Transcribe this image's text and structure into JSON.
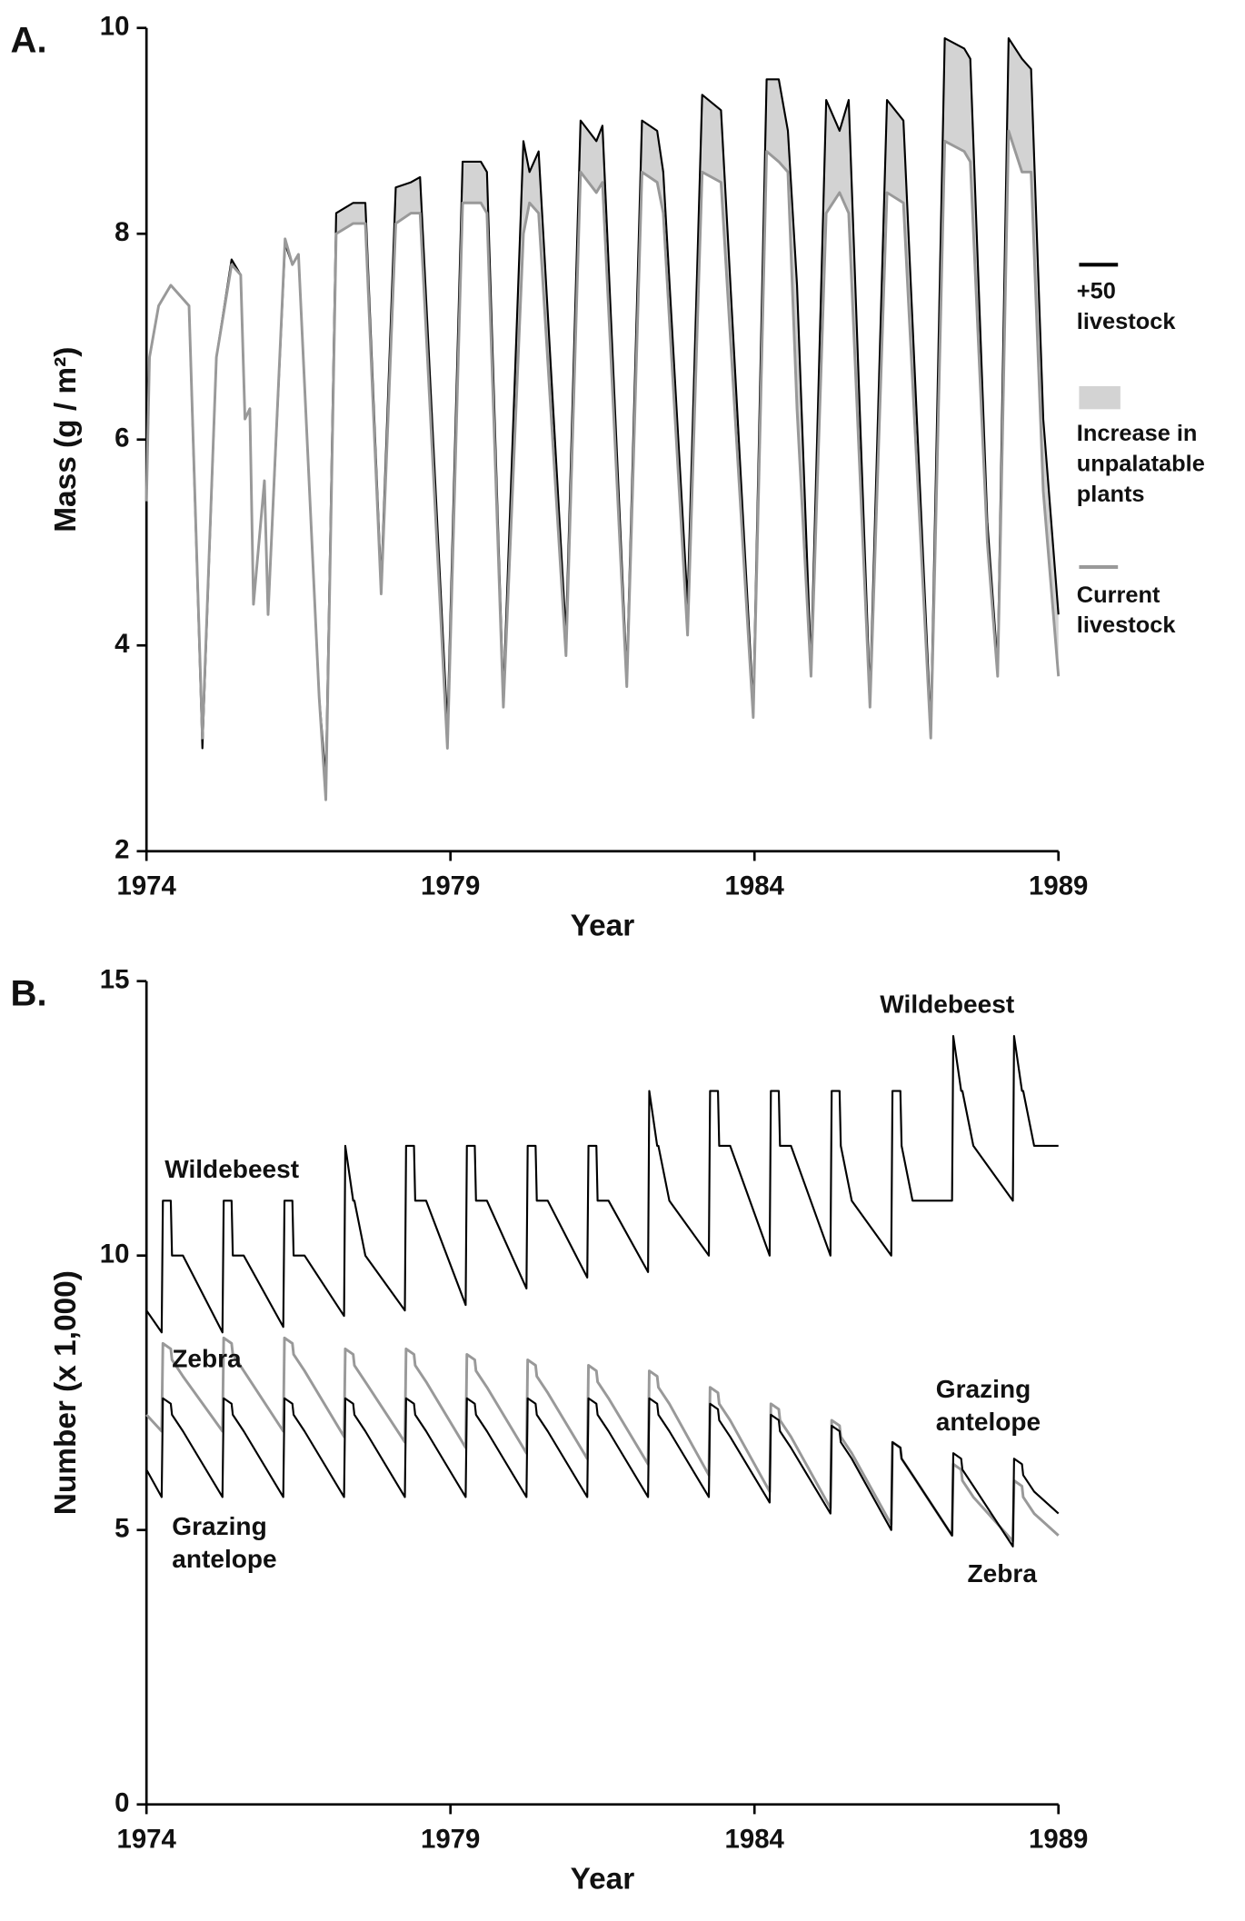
{
  "chart_data": [
    {
      "type": "line",
      "panel_label": "A.",
      "x_label": "Year",
      "y_label": "Mass  (g / m²)",
      "xlim": [
        1974,
        1989
      ],
      "xticks": [
        1974,
        1979,
        1984,
        1989
      ],
      "ylim": [
        2,
        10
      ],
      "yticks": [
        2,
        4,
        6,
        8,
        10
      ],
      "fill_between": true,
      "fill_label": "Increase in unpalatable plants",
      "fill_color": "#d3d3d3",
      "x": [
        1974,
        1974.05,
        1974.2,
        1974.4,
        1974.7,
        1974.92,
        1975.15,
        1975.4,
        1975.55,
        1975.62,
        1975.7,
        1975.76,
        1975.94,
        1976,
        1976.28,
        1976.4,
        1976.5,
        1976.84,
        1976.95,
        1977.12,
        1977.4,
        1977.6,
        1977.86,
        1978.1,
        1978.35,
        1978.5,
        1978.95,
        1979.2,
        1979.5,
        1979.6,
        1979.87,
        1980.2,
        1980.3,
        1980.45,
        1980.9,
        1981.14,
        1981.4,
        1981.5,
        1981.9,
        1982.15,
        1982.4,
        1982.5,
        1982.9,
        1983.14,
        1983.45,
        1983.98,
        1984.2,
        1984.4,
        1984.55,
        1984.7,
        1984.93,
        1985.18,
        1985.4,
        1985.55,
        1985.9,
        1986.18,
        1986.45,
        1986.9,
        1987.13,
        1987.45,
        1987.55,
        1987.83,
        1988,
        1988.18,
        1988.4,
        1988.55,
        1988.75,
        1989
      ],
      "series": [
        {
          "name": "+50 livestock",
          "color": "#000000",
          "values": [
            5.4,
            6.8,
            7.3,
            7.5,
            7.3,
            3.0,
            6.8,
            7.75,
            7.6,
            6.2,
            6.3,
            4.4,
            5.6,
            4.3,
            7.9,
            7.7,
            7.8,
            3.5,
            2.7,
            8.2,
            8.3,
            8.3,
            4.6,
            8.45,
            8.5,
            8.55,
            3.2,
            8.7,
            8.7,
            8.6,
            3.5,
            8.9,
            8.6,
            8.8,
            4.1,
            9.1,
            8.9,
            9.05,
            3.7,
            9.1,
            9.0,
            8.6,
            4.4,
            9.35,
            9.2,
            3.4,
            9.5,
            9.5,
            9.0,
            7.5,
            3.8,
            9.3,
            9.0,
            9.3,
            3.5,
            9.3,
            9.1,
            3.2,
            9.9,
            9.8,
            9.7,
            5.2,
            3.8,
            9.9,
            9.7,
            9.6,
            6.2,
            4.3
          ]
        },
        {
          "name": "Current livestock",
          "color": "#999999",
          "values": [
            5.4,
            6.8,
            7.3,
            7.5,
            7.3,
            3.1,
            6.8,
            7.7,
            7.6,
            6.2,
            6.3,
            4.4,
            5.6,
            4.3,
            7.95,
            7.7,
            7.8,
            3.5,
            2.5,
            8.0,
            8.1,
            8.1,
            4.5,
            8.1,
            8.2,
            8.2,
            3.0,
            8.3,
            8.3,
            8.2,
            3.4,
            8.0,
            8.3,
            8.2,
            3.9,
            8.6,
            8.4,
            8.5,
            3.6,
            8.6,
            8.5,
            8.2,
            4.1,
            8.6,
            8.5,
            3.3,
            8.8,
            8.7,
            8.6,
            6.3,
            3.7,
            8.2,
            8.4,
            8.2,
            3.4,
            8.4,
            8.3,
            3.1,
            8.9,
            8.8,
            8.7,
            5.0,
            3.7,
            9.0,
            8.6,
            8.6,
            5.5,
            3.7
          ]
        }
      ]
    },
    {
      "type": "line",
      "panel_label": "B.",
      "x_label": "Year",
      "y_label": "Number  (x 1,000)",
      "xlim": [
        1974,
        1989
      ],
      "xticks": [
        1974,
        1979,
        1984,
        1989
      ],
      "ylim": [
        0,
        15
      ],
      "yticks": [
        0,
        5,
        10,
        15
      ],
      "annotations": [
        "Wildebeest",
        "Wildebeest",
        "Zebra",
        "Grazing antelope",
        "Grazing antelope",
        "Zebra"
      ],
      "x": [
        1974,
        1974.25,
        1974.27,
        1974.4,
        1974.42,
        1974.6,
        1975.25,
        1975.27,
        1975.4,
        1975.42,
        1975.6,
        1976.25,
        1976.27,
        1976.4,
        1976.42,
        1976.6,
        1977.25,
        1977.27,
        1977.4,
        1977.42,
        1977.6,
        1978.25,
        1978.27,
        1978.4,
        1978.42,
        1978.6,
        1979.25,
        1979.27,
        1979.4,
        1979.42,
        1979.6,
        1980.25,
        1980.27,
        1980.4,
        1980.42,
        1980.6,
        1981.25,
        1981.27,
        1981.4,
        1981.42,
        1981.6,
        1982.25,
        1982.27,
        1982.4,
        1982.42,
        1982.6,
        1983.25,
        1983.27,
        1983.4,
        1983.42,
        1983.6,
        1984.25,
        1984.27,
        1984.4,
        1984.42,
        1984.6,
        1985.25,
        1985.27,
        1985.4,
        1985.42,
        1985.6,
        1986.25,
        1986.27,
        1986.4,
        1986.42,
        1986.6,
        1987.25,
        1987.27,
        1987.4,
        1987.42,
        1987.6,
        1988.25,
        1988.27,
        1988.4,
        1988.42,
        1988.6,
        1989
      ],
      "series": [
        {
          "name": "Wildebeest",
          "color": "#000000",
          "values": [
            9.0,
            8.6,
            11,
            11,
            10,
            10,
            8.6,
            11,
            11,
            10,
            10,
            8.7,
            11,
            11,
            10,
            10,
            8.9,
            12,
            11,
            11,
            10,
            9.0,
            12,
            12,
            11,
            11,
            9.1,
            12,
            12,
            11,
            11,
            9.4,
            12,
            12,
            11,
            11,
            9.6,
            12,
            12,
            11,
            11,
            9.7,
            13,
            12,
            12,
            11,
            10,
            13,
            13,
            12,
            12,
            10,
            13,
            13,
            12,
            12,
            10,
            13,
            13,
            12,
            11,
            10,
            13,
            13,
            12,
            11,
            11,
            14,
            13,
            13,
            12,
            11,
            14,
            13,
            13,
            12,
            12
          ]
        },
        {
          "name": "Zebra",
          "color": "#999999",
          "values": [
            7.1,
            6.8,
            8.4,
            8.3,
            8.1,
            7.8,
            6.8,
            8.5,
            8.4,
            8.2,
            7.9,
            6.8,
            8.5,
            8.4,
            8.2,
            7.9,
            6.7,
            8.3,
            8.2,
            8.0,
            7.7,
            6.6,
            8.3,
            8.2,
            8.0,
            7.7,
            6.5,
            8.2,
            8.1,
            7.9,
            7.6,
            6.4,
            8.1,
            8.0,
            7.8,
            7.5,
            6.3,
            8.0,
            7.9,
            7.7,
            7.4,
            6.2,
            7.9,
            7.8,
            7.6,
            7.3,
            6.0,
            7.6,
            7.5,
            7.3,
            7.0,
            5.7,
            7.3,
            7.2,
            7.0,
            6.7,
            5.4,
            7.0,
            6.9,
            6.7,
            6.4,
            5.1,
            6.6,
            6.5,
            6.3,
            6.0,
            4.9,
            6.2,
            6.1,
            5.9,
            5.6,
            4.8,
            5.9,
            5.8,
            5.6,
            5.3,
            4.9
          ]
        },
        {
          "name": "Grazing antelope",
          "color": "#000000",
          "values": [
            6.1,
            5.6,
            7.4,
            7.3,
            7.1,
            6.8,
            5.6,
            7.4,
            7.3,
            7.1,
            6.8,
            5.6,
            7.4,
            7.3,
            7.1,
            6.8,
            5.6,
            7.4,
            7.3,
            7.1,
            6.8,
            5.6,
            7.4,
            7.3,
            7.1,
            6.8,
            5.6,
            7.4,
            7.3,
            7.1,
            6.8,
            5.6,
            7.4,
            7.3,
            7.1,
            6.8,
            5.6,
            7.4,
            7.3,
            7.1,
            6.8,
            5.6,
            7.4,
            7.3,
            7.1,
            6.8,
            5.6,
            7.3,
            7.2,
            7.0,
            6.7,
            5.5,
            7.1,
            7.0,
            6.8,
            6.5,
            5.3,
            6.9,
            6.8,
            6.6,
            6.3,
            5.0,
            6.6,
            6.5,
            6.3,
            6.0,
            4.9,
            6.4,
            6.3,
            6.1,
            5.8,
            4.7,
            6.3,
            6.2,
            6.0,
            5.7,
            5.3
          ]
        }
      ]
    }
  ]
}
